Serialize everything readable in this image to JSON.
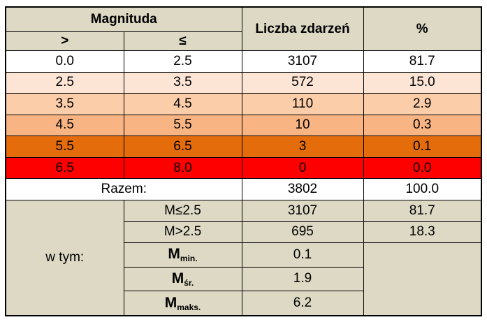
{
  "header": {
    "magnitude": "Magnituda",
    "gt": ">",
    "le": "≤",
    "count": "Liczba zdarzeń",
    "percent": "%"
  },
  "rows": [
    {
      "from": "0.0",
      "to": "2.5",
      "count": "3107",
      "percent": "81.7",
      "color": "#ffffff"
    },
    {
      "from": "2.5",
      "to": "3.5",
      "count": "572",
      "percent": "15.0",
      "color": "#fde5d6"
    },
    {
      "from": "3.5",
      "to": "4.5",
      "count": "110",
      "percent": "2.9",
      "color": "#fbcda9"
    },
    {
      "from": "4.5",
      "to": "5.5",
      "count": "10",
      "percent": "0.3",
      "color": "#f8b483"
    },
    {
      "from": "5.5",
      "to": "6.5",
      "count": "3",
      "percent": "0.1",
      "color": "#e46c0a"
    },
    {
      "from": "6.5",
      "to": "8.0",
      "count": "0",
      "percent": "0.0",
      "color": "#ff0000"
    }
  ],
  "total": {
    "label": "Razem:",
    "count": "3802",
    "percent": "100.0"
  },
  "breakdown": {
    "label": "w tym:",
    "le25": {
      "label": "M≤2.5",
      "count": "3107",
      "percent": "81.7"
    },
    "gt25": {
      "label": "M>2.5",
      "count": "695",
      "percent": "18.3"
    },
    "min": {
      "symbol": "M",
      "sub": "min.",
      "value": "0.1"
    },
    "avg": {
      "symbol": "M",
      "sub": "śr.",
      "value": "1.9"
    },
    "max": {
      "symbol": "M",
      "sub": "maks.",
      "value": "6.2"
    }
  },
  "colors": {
    "header_bg": "#ddd9c4",
    "breakdown_bg": "#ddd9c4",
    "total_bg": "#ffffff"
  }
}
